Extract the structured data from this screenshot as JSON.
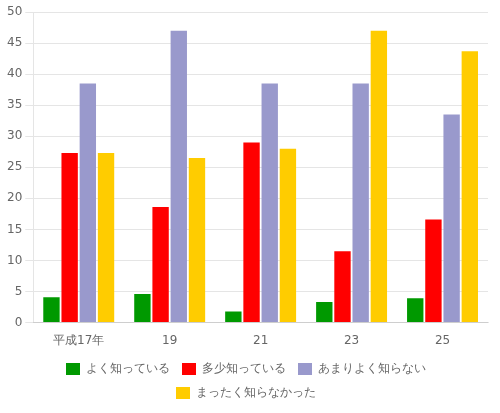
{
  "chart_data": {
    "type": "bar",
    "categories": [
      "平成17年",
      "19",
      "21",
      "23",
      "25"
    ],
    "series": [
      {
        "name": "よく知っている",
        "color": "#009900",
        "values": [
          4.1,
          4.6,
          1.8,
          3.3,
          3.9
        ]
      },
      {
        "name": "多少知っている",
        "color": "#ff0000",
        "values": [
          27.3,
          18.6,
          29.0,
          11.5,
          16.6
        ]
      },
      {
        "name": "あまりよく知らない",
        "color": "#9999cc",
        "values": [
          38.5,
          47.0,
          38.5,
          38.5,
          33.5
        ]
      },
      {
        "name": "まったく知らなかった",
        "color": "#ffcc00",
        "values": [
          27.3,
          26.5,
          28.0,
          47.0,
          43.7
        ]
      }
    ],
    "ylim": [
      0,
      50
    ],
    "yticks": [
      0,
      5,
      10,
      15,
      20,
      25,
      30,
      35,
      40,
      45,
      50
    ],
    "grid": true,
    "legend": "bottom"
  }
}
